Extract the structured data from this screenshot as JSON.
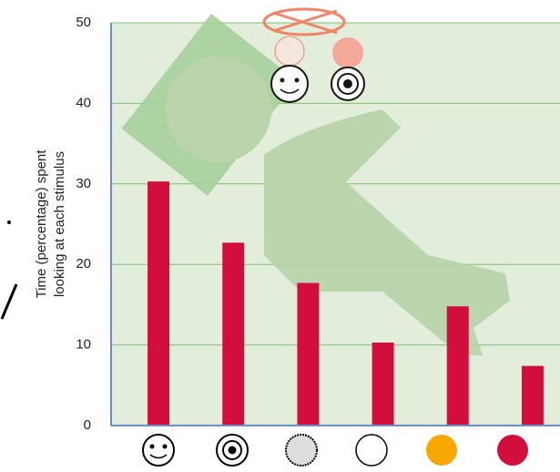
{
  "chart_data": {
    "type": "bar",
    "ylabel": [
      "Time (percentage) spent",
      "looking at each stimulus"
    ],
    "categories": [
      null,
      null,
      null,
      null,
      null,
      null
    ],
    "values": [
      30.3,
      22.7,
      17.7,
      10.3,
      14.8,
      7.4
    ],
    "color": "#d20f3c",
    "ylim": [
      0,
      50
    ],
    "yticks": [
      0,
      10,
      20,
      30,
      40,
      50
    ],
    "grid": true
  }
}
